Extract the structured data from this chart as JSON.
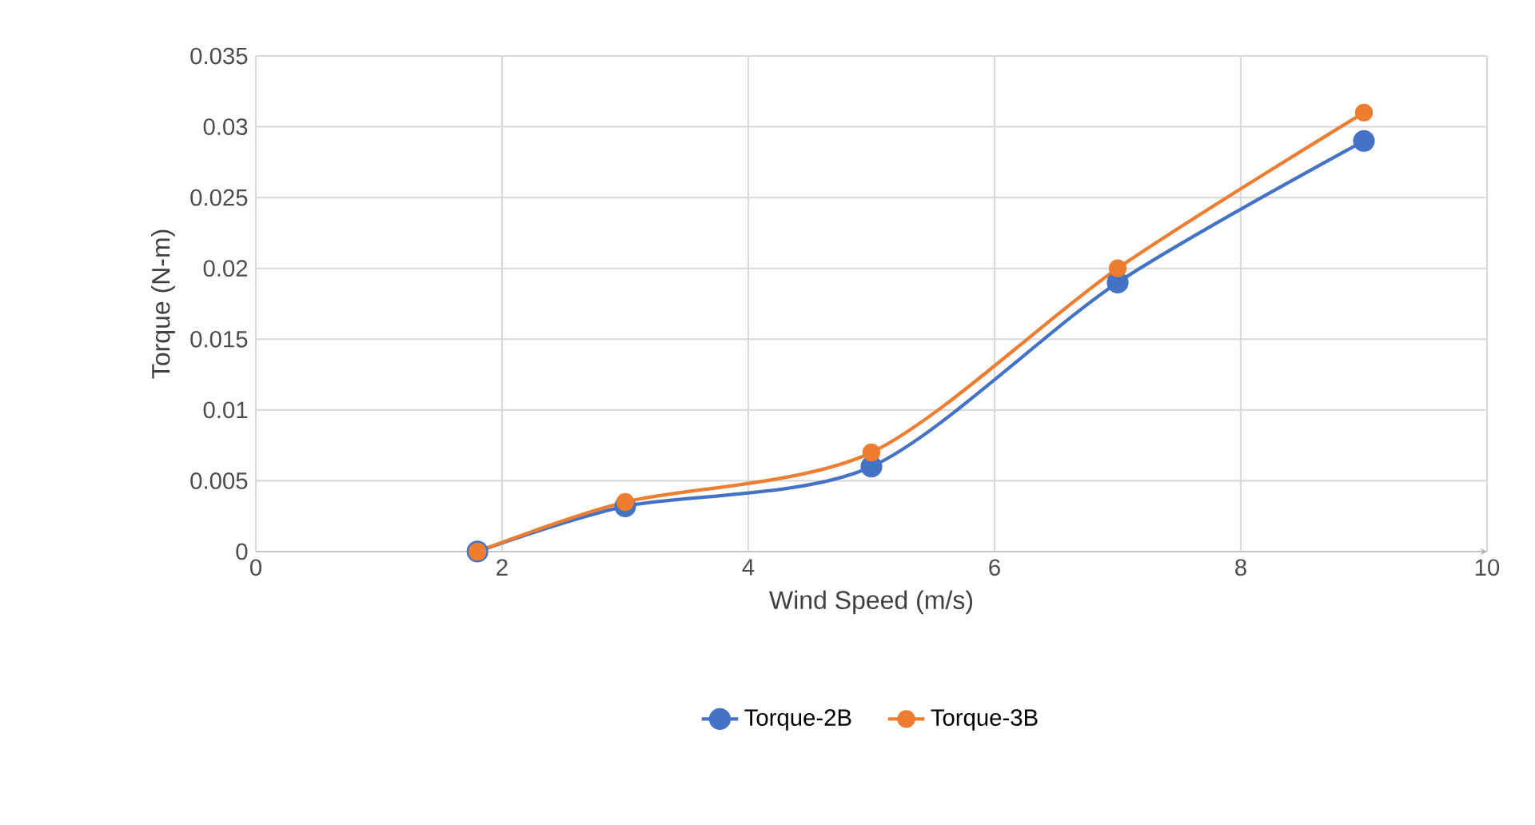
{
  "chart_data": {
    "type": "line",
    "xlabel": "Wind Speed (m/s)",
    "ylabel": "Torque (N-m)",
    "xlim": [
      0,
      10
    ],
    "xticks": [
      0,
      2,
      4,
      6,
      8,
      10
    ],
    "ylim": [
      0,
      0.035
    ],
    "yticks": [
      0,
      0.005,
      0.01,
      0.015,
      0.02,
      0.025,
      0.03,
      0.035
    ],
    "grid": true,
    "legend": "bottom",
    "marker": "circle",
    "line_style": "solid",
    "series": [
      {
        "name": "Torque-2B",
        "color": "#4472c4",
        "x": [
          1.8,
          3,
          5,
          7,
          9
        ],
        "values": [
          0,
          0.0032,
          0.006,
          0.019,
          0.029
        ]
      },
      {
        "name": "Torque-3B",
        "color": "#ed7d31",
        "x": [
          1.8,
          3,
          5,
          7,
          9
        ],
        "values": [
          0,
          0.0035,
          0.007,
          0.02,
          0.031
        ]
      }
    ]
  }
}
